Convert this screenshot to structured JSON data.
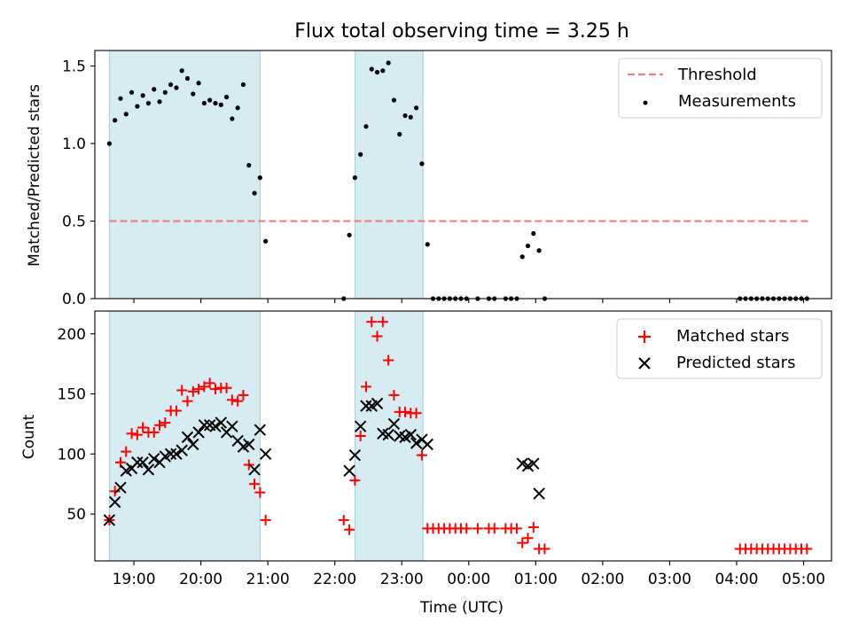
{
  "chart_data": [
    {
      "type": "scatter",
      "title": "Flux total observing time = 3.25 h",
      "ylabel": "Matched/Predicted stars",
      "xlabel": "",
      "xlim": [
        "18:25",
        "05:25"
      ],
      "ylim": [
        0,
        1.6
      ],
      "yticks": [
        "0.0",
        "0.5",
        "1.0",
        "1.5"
      ],
      "grid": false,
      "legend_position": "top-right",
      "shaded_intervals": [
        [
          "18:38",
          "20:53"
        ],
        [
          "22:18",
          "23:19"
        ]
      ],
      "threshold": {
        "name": "Threshold",
        "y": 0.5,
        "x_start": "18:38",
        "x_end": "05:04",
        "color": "#f08080"
      },
      "series": [
        {
          "name": "Measurements",
          "color": "#000000",
          "x": [
            "18:38",
            "18:43",
            "18:48",
            "18:53",
            "18:58",
            "19:03",
            "19:08",
            "19:13",
            "19:18",
            "19:23",
            "19:28",
            "19:33",
            "19:38",
            "19:43",
            "19:48",
            "19:53",
            "19:58",
            "20:03",
            "20:08",
            "20:13",
            "20:18",
            "20:23",
            "20:28",
            "20:33",
            "20:38",
            "20:43",
            "20:48",
            "20:53",
            "20:58",
            "22:08",
            "22:13",
            "22:18",
            "22:23",
            "22:28",
            "22:33",
            "22:38",
            "22:43",
            "22:48",
            "22:53",
            "22:58",
            "23:03",
            "23:08",
            "23:13",
            "23:18",
            "23:23",
            "23:28",
            "23:33",
            "23:38",
            "23:43",
            "23:48",
            "23:53",
            "23:58",
            "00:08",
            "00:18",
            "00:23",
            "00:33",
            "00:38",
            "00:43",
            "00:48",
            "00:53",
            "00:58",
            "01:03",
            "01:08",
            "04:03",
            "04:08",
            "04:13",
            "04:18",
            "04:23",
            "04:28",
            "04:33",
            "04:38",
            "04:43",
            "04:48",
            "04:53",
            "04:58",
            "05:03"
          ],
          "y": [
            1.0,
            1.15,
            1.29,
            1.19,
            1.33,
            1.24,
            1.31,
            1.26,
            1.35,
            1.27,
            1.33,
            1.38,
            1.36,
            1.47,
            1.42,
            1.32,
            1.39,
            1.26,
            1.28,
            1.26,
            1.25,
            1.3,
            1.16,
            1.23,
            1.38,
            0.86,
            0.68,
            0.78,
            0.37,
            0.0,
            0.41,
            0.78,
            0.93,
            1.11,
            1.48,
            1.46,
            1.47,
            1.52,
            1.28,
            1.06,
            1.18,
            1.17,
            1.23,
            0.87,
            0.35,
            0.0,
            0.0,
            0.0,
            0.0,
            0.0,
            0.0,
            0.0,
            0.0,
            0.0,
            0.0,
            0.0,
            0.0,
            0.0,
            0.27,
            0.34,
            0.42,
            0.31,
            0.0,
            0.0,
            0.0,
            0.0,
            0.0,
            0.0,
            0.0,
            0.0,
            0.0,
            0.0,
            0.0,
            0.0,
            0.0,
            0.0
          ]
        }
      ]
    },
    {
      "type": "scatter",
      "title": "",
      "ylabel": "Count",
      "xlabel": "Time (UTC)",
      "xlim": [
        "18:25",
        "05:25"
      ],
      "ylim": [
        11,
        219
      ],
      "yticks": [
        "50",
        "100",
        "150",
        "200"
      ],
      "xticks": [
        "19:00",
        "20:00",
        "21:00",
        "22:00",
        "23:00",
        "00:00",
        "01:00",
        "02:00",
        "03:00",
        "04:00",
        "05:00"
      ],
      "grid": false,
      "legend_position": "top-right",
      "shaded_intervals": [
        [
          "18:38",
          "20:53"
        ],
        [
          "22:18",
          "23:19"
        ]
      ],
      "series": [
        {
          "name": "Matched stars",
          "color": "#ff0000",
          "x": [
            "18:38",
            "18:43",
            "18:48",
            "18:53",
            "18:58",
            "19:03",
            "19:08",
            "19:13",
            "19:18",
            "19:23",
            "19:28",
            "19:33",
            "19:38",
            "19:43",
            "19:48",
            "19:53",
            "19:58",
            "20:03",
            "20:08",
            "20:13",
            "20:18",
            "20:23",
            "20:28",
            "20:33",
            "20:38",
            "20:43",
            "20:48",
            "20:53",
            "20:58",
            "22:08",
            "22:13",
            "22:18",
            "22:23",
            "22:28",
            "22:33",
            "22:38",
            "22:43",
            "22:48",
            "22:53",
            "22:58",
            "23:03",
            "23:08",
            "23:13",
            "23:18",
            "23:23",
            "23:28",
            "23:33",
            "23:38",
            "23:43",
            "23:48",
            "23:53",
            "23:58",
            "00:08",
            "00:18",
            "00:23",
            "00:33",
            "00:38",
            "00:43",
            "00:48",
            "00:53",
            "00:58",
            "01:03",
            "01:08",
            "04:03",
            "04:08",
            "04:13",
            "04:18",
            "04:23",
            "04:28",
            "04:33",
            "04:38",
            "04:43",
            "04:48",
            "04:53",
            "04:58",
            "05:03"
          ],
          "y": [
            45,
            69,
            93,
            102,
            117,
            116,
            122,
            118,
            118,
            124,
            126,
            136,
            136,
            153,
            144,
            152,
            154,
            156,
            159,
            154,
            155,
            155,
            145,
            144,
            149,
            91,
            75,
            68,
            45,
            45,
            37,
            78,
            115,
            156,
            210,
            198,
            210,
            178,
            149,
            135,
            135,
            134,
            134,
            99,
            38,
            38,
            38,
            38,
            38,
            38,
            38,
            38,
            38,
            38,
            38,
            38,
            38,
            38,
            26,
            30,
            39,
            21,
            21,
            21,
            21,
            21,
            21,
            21,
            21,
            21,
            21,
            21,
            21,
            21,
            21,
            21
          ]
        },
        {
          "name": "Predicted stars",
          "color": "#000000",
          "x": [
            "18:38",
            "18:43",
            "18:48",
            "18:53",
            "18:58",
            "19:03",
            "19:08",
            "19:13",
            "19:18",
            "19:23",
            "19:28",
            "19:33",
            "19:38",
            "19:43",
            "19:48",
            "19:53",
            "19:58",
            "20:03",
            "20:08",
            "20:13",
            "20:18",
            "20:23",
            "20:28",
            "20:33",
            "20:38",
            "20:43",
            "20:48",
            "20:53",
            "20:58",
            "22:13",
            "22:18",
            "22:23",
            "22:28",
            "22:33",
            "22:38",
            "22:43",
            "22:48",
            "22:53",
            "22:58",
            "23:03",
            "23:08",
            "23:13",
            "23:18",
            "23:23",
            "00:48",
            "00:53",
            "00:58",
            "01:03"
          ],
          "y": [
            45,
            60,
            72,
            86,
            88,
            93,
            93,
            87,
            96,
            93,
            98,
            100,
            100,
            103,
            114,
            108,
            118,
            124,
            124,
            123,
            126,
            118,
            123,
            111,
            106,
            108,
            87,
            120,
            100,
            86,
            99,
            123,
            140,
            140,
            142,
            117,
            116,
            125,
            115,
            114,
            116,
            109,
            112,
            108,
            92,
            90,
            92,
            67
          ]
        }
      ]
    }
  ]
}
